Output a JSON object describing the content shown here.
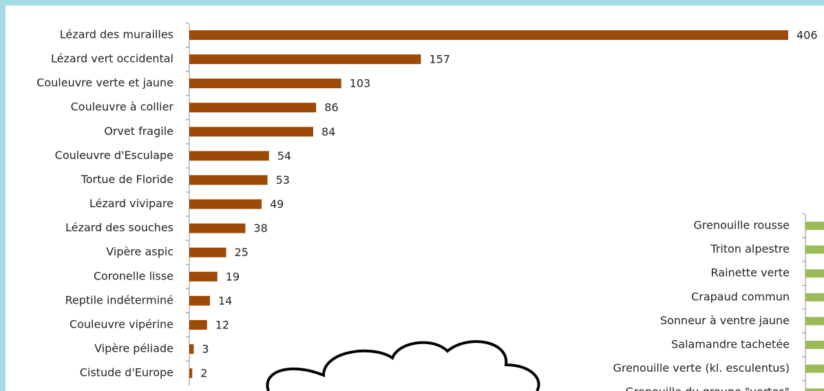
{
  "chart_data": [
    {
      "type": "bar",
      "orientation": "horizontal",
      "color": "#9c4a06",
      "categories": [
        "Lézard des murailles",
        "Lézard vert occidental",
        "Couleuvre verte et jaune",
        "Couleuvre à collier",
        "Orvet fragile",
        "Couleuvre d'Esculape",
        "Tortue de Floride",
        "Lézard vivipare",
        "Lézard des souches",
        "Vipère aspic",
        "Coronelle lisse",
        "Reptile indéterminé",
        "Couleuvre vipérine",
        "Vipère péliade",
        "Cistude d'Europe"
      ],
      "values": [
        406,
        157,
        103,
        86,
        84,
        54,
        53,
        49,
        38,
        25,
        19,
        14,
        12,
        3,
        2
      ],
      "xlim": [
        0,
        406
      ]
    },
    {
      "type": "bar",
      "orientation": "horizontal",
      "color": "#9bbb59",
      "categories": [
        "Grenouille rousse",
        "Triton alpestre",
        "Rainette verte",
        "Crapaud commun",
        "Sonneur à ventre jaune",
        "Salamandre tachetée",
        "Grenouille verte (kl. esculentus)",
        "Grenouille du groupe \"vertes\""
      ]
    }
  ]
}
